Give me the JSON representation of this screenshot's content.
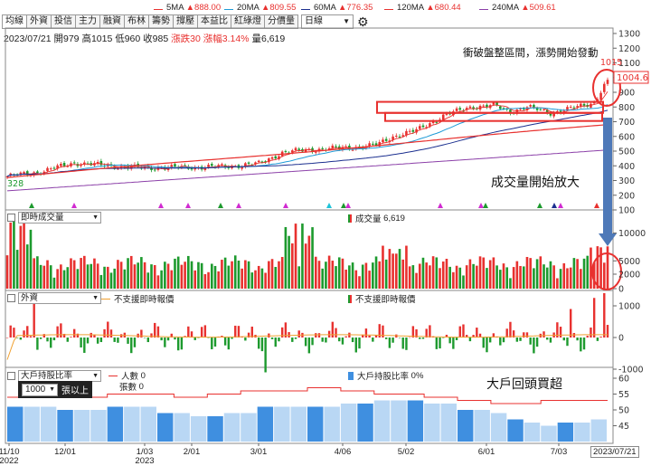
{
  "toolbar": {
    "tabs": [
      "均線",
      "外資",
      "投信",
      "主力",
      "融資",
      "布林",
      "籌勢",
      "撐壓",
      "本益比",
      "紅綠燈",
      "分價量"
    ],
    "period_select": "日線"
  },
  "quote": {
    "date": "2023/07/21",
    "open_label": "開",
    "open": "979",
    "high_label": "高",
    "high": "1015",
    "low_label": "低",
    "low": "960",
    "close_label": "收",
    "close": "985",
    "change_label": "漲跌",
    "change": "30",
    "pct_label": "漲幅",
    "pct": "3.14%",
    "volume_label": "量",
    "volume": "6,619"
  },
  "ma_legend": [
    {
      "name": "5MA",
      "value": "888.00",
      "color": "#e8312f"
    },
    {
      "name": "20MA",
      "value": "809.55",
      "color": "#1e9bd7"
    },
    {
      "name": "60MA",
      "value": "776.35",
      "color": "#1b2f8f"
    },
    {
      "name": "120MA",
      "value": "680.44",
      "color": "#e8312f"
    },
    {
      "name": "240MA",
      "value": "509.61",
      "color": "#8b3fa8"
    }
  ],
  "colors": {
    "up": "#e8312f",
    "down": "#1d9a2e",
    "inst_bar": "#3f8fe0",
    "inst_bar_light": "#b9d7f4"
  },
  "annotations": {
    "breakout": "衝破盤整區間，漲勢開始發動",
    "volume_surge": "成交量開始放大",
    "big_holder": "大戶回頭買超",
    "high_mark": "1015",
    "last_price": "1004.6",
    "low_mark": "328"
  },
  "panels": {
    "volume": {
      "selector": "即時成交量",
      "legend_label": "成交量",
      "legend_value": "6,619"
    },
    "foreign": {
      "selector": "外資",
      "legend_line": "不支援即時報價",
      "legend_bar": "不支援即時報價"
    },
    "holder": {
      "selector": "大戶持股比率",
      "people_label": "人數",
      "people_value": "0",
      "shares_label": "張數",
      "shares_value": "0",
      "ratio_label": "大戶持股比率",
      "ratio_value": "0%",
      "threshold_value": "1000",
      "threshold_unit": "張以上"
    }
  },
  "axes": {
    "price_ticks": [
      "1300",
      "1200",
      "1100",
      "1000",
      "900",
      "800",
      "700",
      "600",
      "500",
      "400",
      "300",
      "200",
      "100"
    ],
    "volume_ticks": [
      "10000",
      "5000",
      "0"
    ],
    "foreign_ticks": [
      "2000",
      "1000",
      "0",
      "-1000"
    ],
    "holder_ticks": [
      "60",
      "55",
      "50",
      "45"
    ],
    "x_labels": [
      {
        "l1": "11/10",
        "l2": "2022",
        "x": 10
      },
      {
        "l1": "12/01",
        "l2": "",
        "x": 72
      },
      {
        "l1": "1/03",
        "l2": "2023",
        "x": 160
      },
      {
        "l1": "2/01",
        "l2": "",
        "x": 212
      },
      {
        "l1": "3/01",
        "l2": "",
        "x": 286
      },
      {
        "l1": "4/06",
        "l2": "",
        "x": 379
      },
      {
        "l1": "5/02",
        "l2": "",
        "x": 449
      },
      {
        "l1": "6/01",
        "l2": "",
        "x": 538
      },
      {
        "l1": "7/03",
        "l2": "",
        "x": 618
      }
    ],
    "last_date": "2023/07/21"
  },
  "chart_data": [
    {
      "type": "candlestick",
      "title": "",
      "ylim": [
        100,
        1350
      ],
      "key_points": [
        {
          "date": "2022/11/10",
          "price": 328
        },
        {
          "date": "2023/02/01",
          "price": 400
        },
        {
          "date": "2023/03/01",
          "price": 500
        },
        {
          "date": "2023/04/06",
          "price": 800
        },
        {
          "date": "2023/05/02",
          "price": 760
        },
        {
          "date": "2023/06/01",
          "price": 760
        },
        {
          "date": "2023/07/03",
          "price": 800
        },
        {
          "date": "2023/07/21",
          "price": 985
        }
      ],
      "series": [
        {
          "name": "5MA",
          "last": 888.0
        },
        {
          "name": "20MA",
          "last": 809.55
        },
        {
          "name": "60MA",
          "last": 776.35
        },
        {
          "name": "120MA",
          "last": 680.44
        },
        {
          "name": "240MA",
          "last": 509.61
        }
      ]
    },
    {
      "type": "bar",
      "title": "",
      "ylabel": "成交量",
      "ylim": [
        0,
        14000
      ],
      "last": 6619
    },
    {
      "type": "bar",
      "title": "",
      "ylabel": "外資",
      "ylim": [
        -1500,
        2200
      ]
    },
    {
      "type": "area",
      "title": "",
      "ylabel": "大戶持股比率",
      "ylim": [
        40,
        62
      ]
    }
  ]
}
